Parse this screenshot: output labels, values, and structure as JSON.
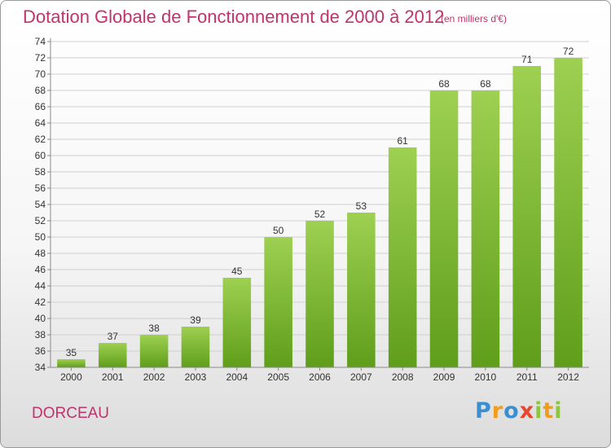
{
  "header": {
    "title": "Dotation Globale de Fonctionnement de 2000 à 2012",
    "unit": "(en milliers d'€)"
  },
  "footer": {
    "commune": "DORCEAU",
    "logo_text": "Proxiti"
  },
  "colors": {
    "title": "#c0336b",
    "bar_top": "#9ed052",
    "bar_bottom": "#5f9e1a",
    "grid": "#d0d0d0",
    "axis": "#8a8a8a"
  },
  "chart_data": {
    "type": "bar",
    "title": "Dotation Globale de Fonctionnement de 2000 à 2012",
    "subtitle": "(en milliers d'€)",
    "xlabel": "",
    "ylabel": "",
    "categories": [
      "2000",
      "2001",
      "2002",
      "2003",
      "2004",
      "2005",
      "2006",
      "2007",
      "2008",
      "2009",
      "2010",
      "2011",
      "2012"
    ],
    "values": [
      35,
      37,
      38,
      39,
      45,
      50,
      52,
      53,
      61,
      68,
      68,
      71,
      72
    ],
    "ylim": [
      34,
      74
    ],
    "ytick_step": 2,
    "grid": true,
    "legend": "none"
  }
}
